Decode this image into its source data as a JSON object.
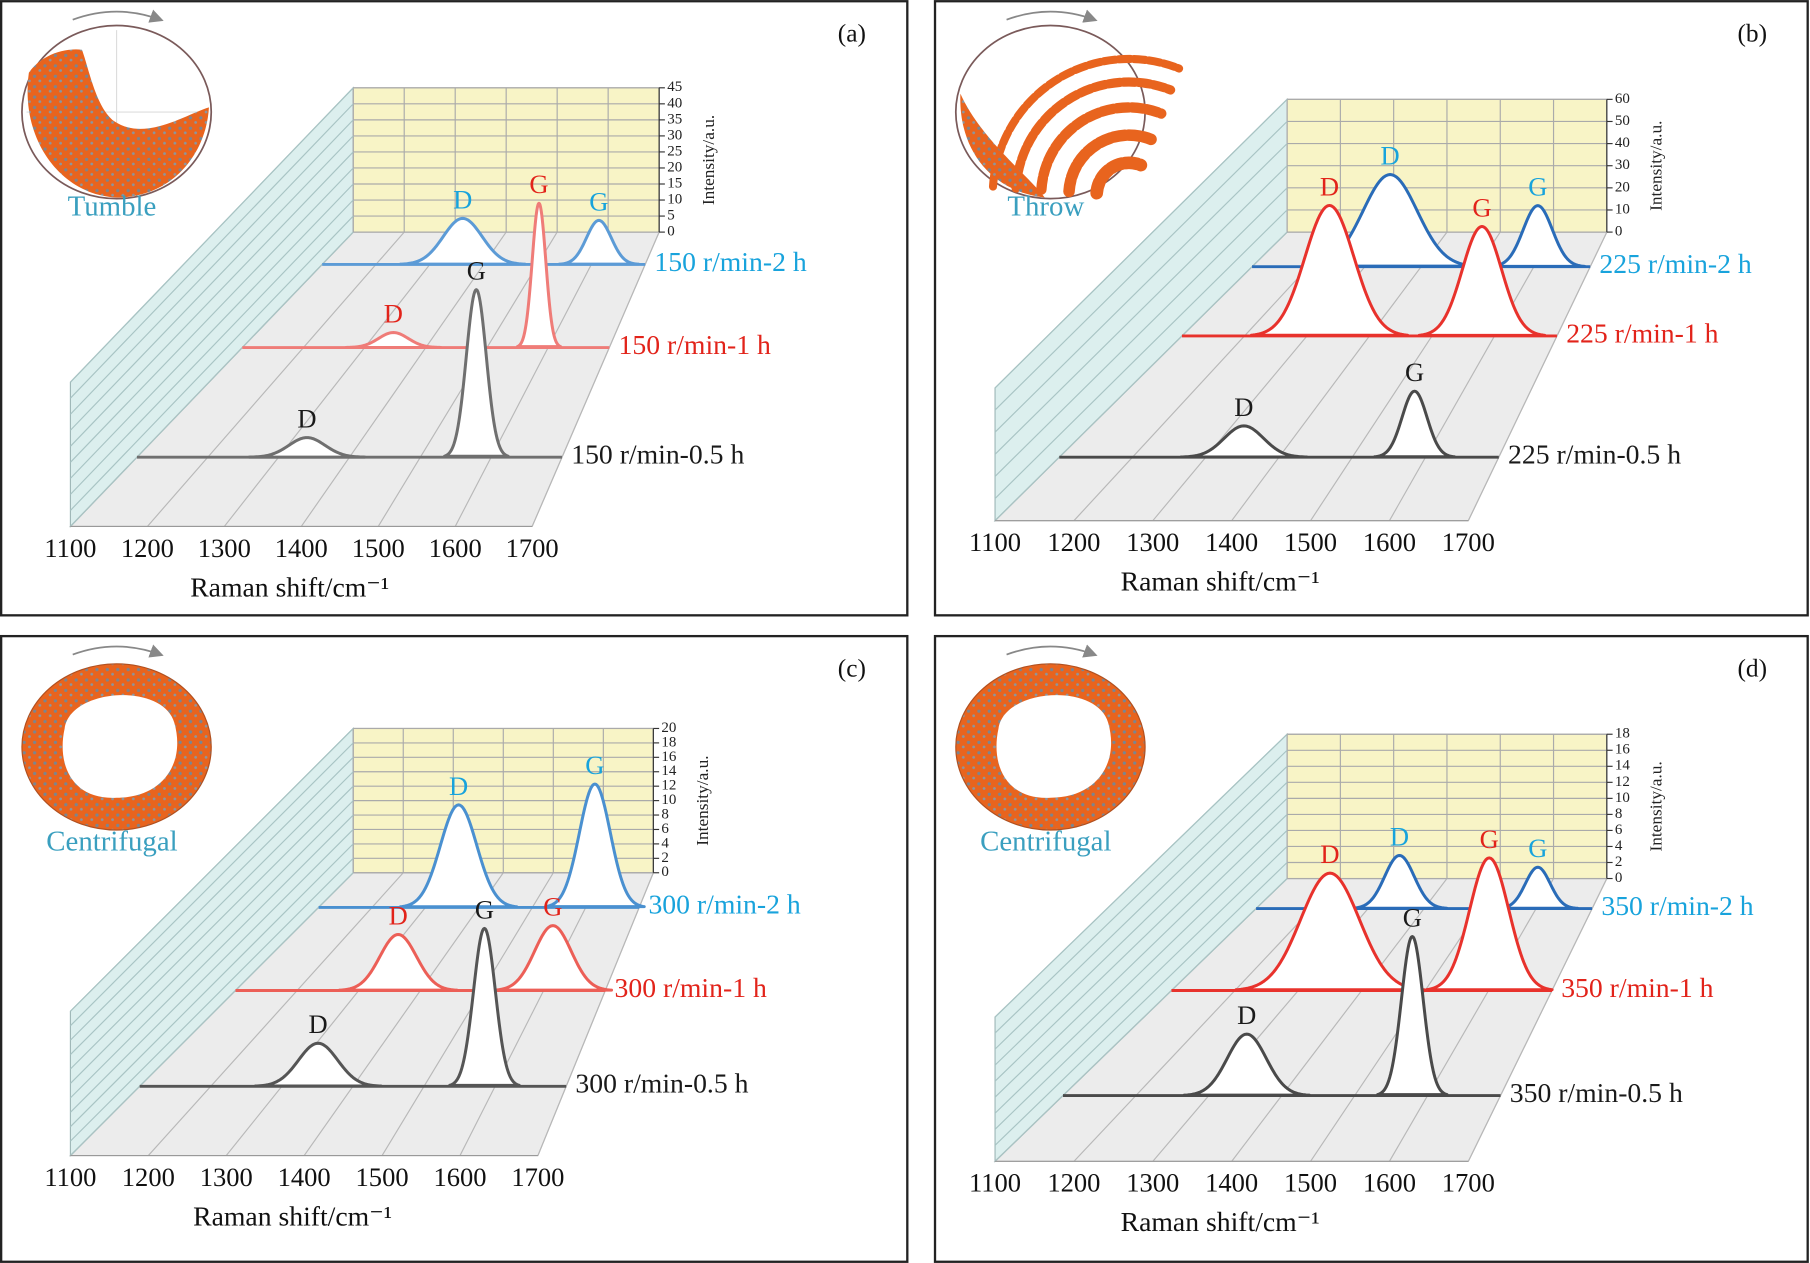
{
  "chart_data": [
    {
      "type": "waterfall",
      "panel_label": "(a)",
      "mode": "Tumble",
      "xlabel": "Raman shift/cm⁻¹",
      "ylabel": "Intensity/a.u.",
      "xlim": [
        1100,
        1700
      ],
      "xticks": [
        1100,
        1200,
        1300,
        1400,
        1500,
        1600,
        1700
      ],
      "ylim": [
        0,
        45
      ],
      "yticks": [
        0,
        5,
        10,
        15,
        20,
        25,
        30,
        35,
        40,
        45
      ],
      "series": [
        {
          "name": "150 r/min-0.5 h",
          "color": "#6f6f6f",
          "label_color": "#1a1a1a",
          "peaks": [
            {
              "label": "D",
              "center": 1340,
              "height": 4.4,
              "fwhm": 60
            },
            {
              "label": "G",
              "center": 1579,
              "height": 37.6,
              "fwhm": 33
            }
          ]
        },
        {
          "name": "150 r/min-1 h",
          "color": "#ef7c78",
          "label_color": "#e2231a",
          "peaks": [
            {
              "label": "D",
              "center": 1347,
              "height": 3.9,
              "fwhm": 57
            },
            {
              "label": "G",
              "center": 1585,
              "height": 37.5,
              "fwhm": 26
            }
          ]
        },
        {
          "name": "150 r/min-2 h",
          "color": "#5c9bd6",
          "label_color": "#18a3dc",
          "peaks": [
            {
              "label": "D",
              "center": 1361,
              "height": 13.6,
              "fwhm": 85
            },
            {
              "label": "G",
              "center": 1614,
              "height": 13,
              "fwhm": 54
            }
          ]
        }
      ]
    },
    {
      "type": "waterfall",
      "panel_label": "(b)",
      "mode": "Throw",
      "xlabel": "Raman shift/cm⁻¹",
      "ylabel": "Intensity/a.u.",
      "xlim": [
        1100,
        1700
      ],
      "xticks": [
        1100,
        1200,
        1300,
        1400,
        1500,
        1600,
        1700
      ],
      "ylim": [
        0,
        60
      ],
      "yticks": [
        0,
        10,
        20,
        30,
        40,
        50,
        60
      ],
      "series": [
        {
          "name": "225 r/min-0.5 h",
          "color": "#4a4a4a",
          "label_color": "#1a1a1a",
          "peaks": [
            {
              "label": "D",
              "center": 1352,
              "height": 10.3,
              "fwhm": 63
            },
            {
              "label": "G",
              "center": 1585,
              "height": 21.7,
              "fwhm": 40
            }
          ]
        },
        {
          "name": "225 r/min-1 h",
          "color": "#e8322c",
          "label_color": "#e2231a",
          "peaks": [
            {
              "label": "D",
              "center": 1336,
              "height": 50.3,
              "fwhm": 92
            },
            {
              "label": "G",
              "center": 1580,
              "height": 42.2,
              "fwhm": 74
            }
          ]
        },
        {
          "name": "225 r/min-2 h",
          "color": "#2a6cb8",
          "label_color": "#18a3dc",
          "peaks": [
            {
              "label": "D",
              "center": 1345,
              "height": 39.4,
              "fwhm": 113
            },
            {
              "label": "G",
              "center": 1607,
              "height": 26.1,
              "fwhm": 61
            }
          ]
        }
      ]
    },
    {
      "type": "waterfall",
      "panel_label": "(c)",
      "mode": "Centrifugal",
      "xlabel": "Raman shift/cm⁻¹",
      "ylabel": "Intensity/a.u.",
      "xlim": [
        1100,
        1700
      ],
      "xticks": [
        1100,
        1200,
        1300,
        1400,
        1500,
        1600,
        1700
      ],
      "ylim": [
        0,
        20
      ],
      "yticks": [
        0,
        2,
        4,
        6,
        8,
        10,
        12,
        14,
        16,
        18,
        20
      ],
      "series": [
        {
          "name": "300 r/min-0.5 h",
          "color": "#555555",
          "label_color": "#1a1a1a",
          "peaks": [
            {
              "label": "D",
              "center": 1351,
              "height": 4.2,
              "fwhm": 65
            },
            {
              "label": "G",
              "center": 1585,
              "height": 15.4,
              "fwhm": 36
            }
          ]
        },
        {
          "name": "300 r/min-1 h",
          "color": "#ec5f57",
          "label_color": "#e2231a",
          "peaks": [
            {
              "label": "D",
              "center": 1364,
              "height": 6.3,
              "fwhm": 70
            },
            {
              "label": "G",
              "center": 1615,
              "height": 7.3,
              "fwhm": 70
            }
          ]
        },
        {
          "name": "300 r/min-2 h",
          "color": "#4a90d0",
          "label_color": "#18a3dc",
          "peaks": [
            {
              "label": "D",
              "center": 1362,
              "height": 13.3,
              "fwhm": 80
            },
            {
              "label": "G",
              "center": 1617,
              "height": 16,
              "fwhm": 68
            }
          ]
        }
      ]
    },
    {
      "type": "waterfall",
      "panel_label": "(d)",
      "mode": "Centrifugal",
      "xlabel": "Raman shift/cm⁻¹",
      "ylabel": "Intensity/a.u.",
      "xlim": [
        1100,
        1700
      ],
      "xticks": [
        1100,
        1200,
        1300,
        1400,
        1500,
        1600,
        1700
      ],
      "ylim": [
        0,
        18
      ],
      "yticks": [
        0,
        2,
        4,
        6,
        8,
        10,
        12,
        14,
        16,
        18
      ],
      "series": [
        {
          "name": "350 r/min-0.5 h",
          "color": "#4a4a4a",
          "label_color": "#1a1a1a",
          "peaks": [
            {
              "label": "D",
              "center": 1352,
              "height": 5.6,
              "fwhm": 63
            },
            {
              "label": "G",
              "center": 1579,
              "height": 14.5,
              "fwhm": 35
            }
          ]
        },
        {
          "name": "350 r/min-1 h",
          "color": "#e8322c",
          "label_color": "#e2231a",
          "peaks": [
            {
              "label": "D",
              "center": 1350,
              "height": 12.3,
              "fwhm": 109
            },
            {
              "label": "G",
              "center": 1601,
              "height": 13.9,
              "fwhm": 73
            }
          ]
        },
        {
          "name": "350 r/min-2 h",
          "color": "#2a6cb8",
          "label_color": "#18a3dc",
          "peaks": [
            {
              "label": "D",
              "center": 1356,
              "height": 6.3,
              "fwhm": 62
            },
            {
              "label": "G",
              "center": 1603,
              "height": 4.9,
              "fwhm": 52
            }
          ]
        }
      ]
    }
  ]
}
